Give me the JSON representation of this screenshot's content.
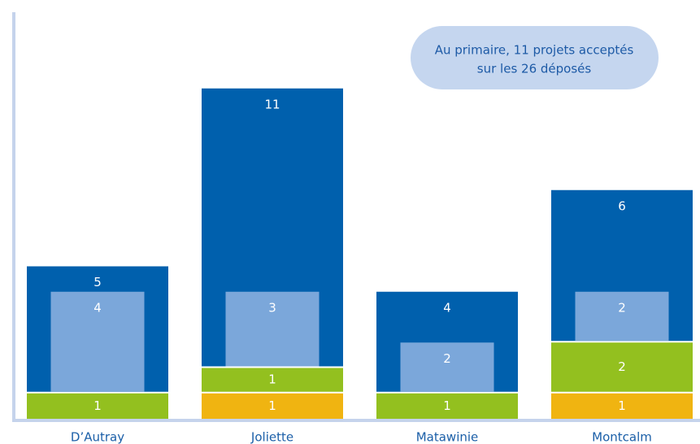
{
  "chart_data": {
    "type": "bar",
    "annotation": [
      "Au primaire, 11 projets acceptés",
      "sur les 26 déposés"
    ],
    "categories": [
      "D’Autray",
      "Joliette",
      "Matawinie",
      "Montcalm"
    ],
    "series": [
      {
        "color": "#f0b411",
        "values": [
          null,
          1,
          null,
          1
        ]
      },
      {
        "color": "#93c01f",
        "values": [
          1,
          1,
          1,
          2
        ]
      },
      {
        "color": "#0060ad",
        "values": [
          5,
          11,
          4,
          6
        ]
      },
      {
        "color": "#7ba7da",
        "values": [
          4,
          3,
          2,
          2
        ],
        "inset": true
      }
    ],
    "ylim": [
      0,
      16
    ]
  }
}
